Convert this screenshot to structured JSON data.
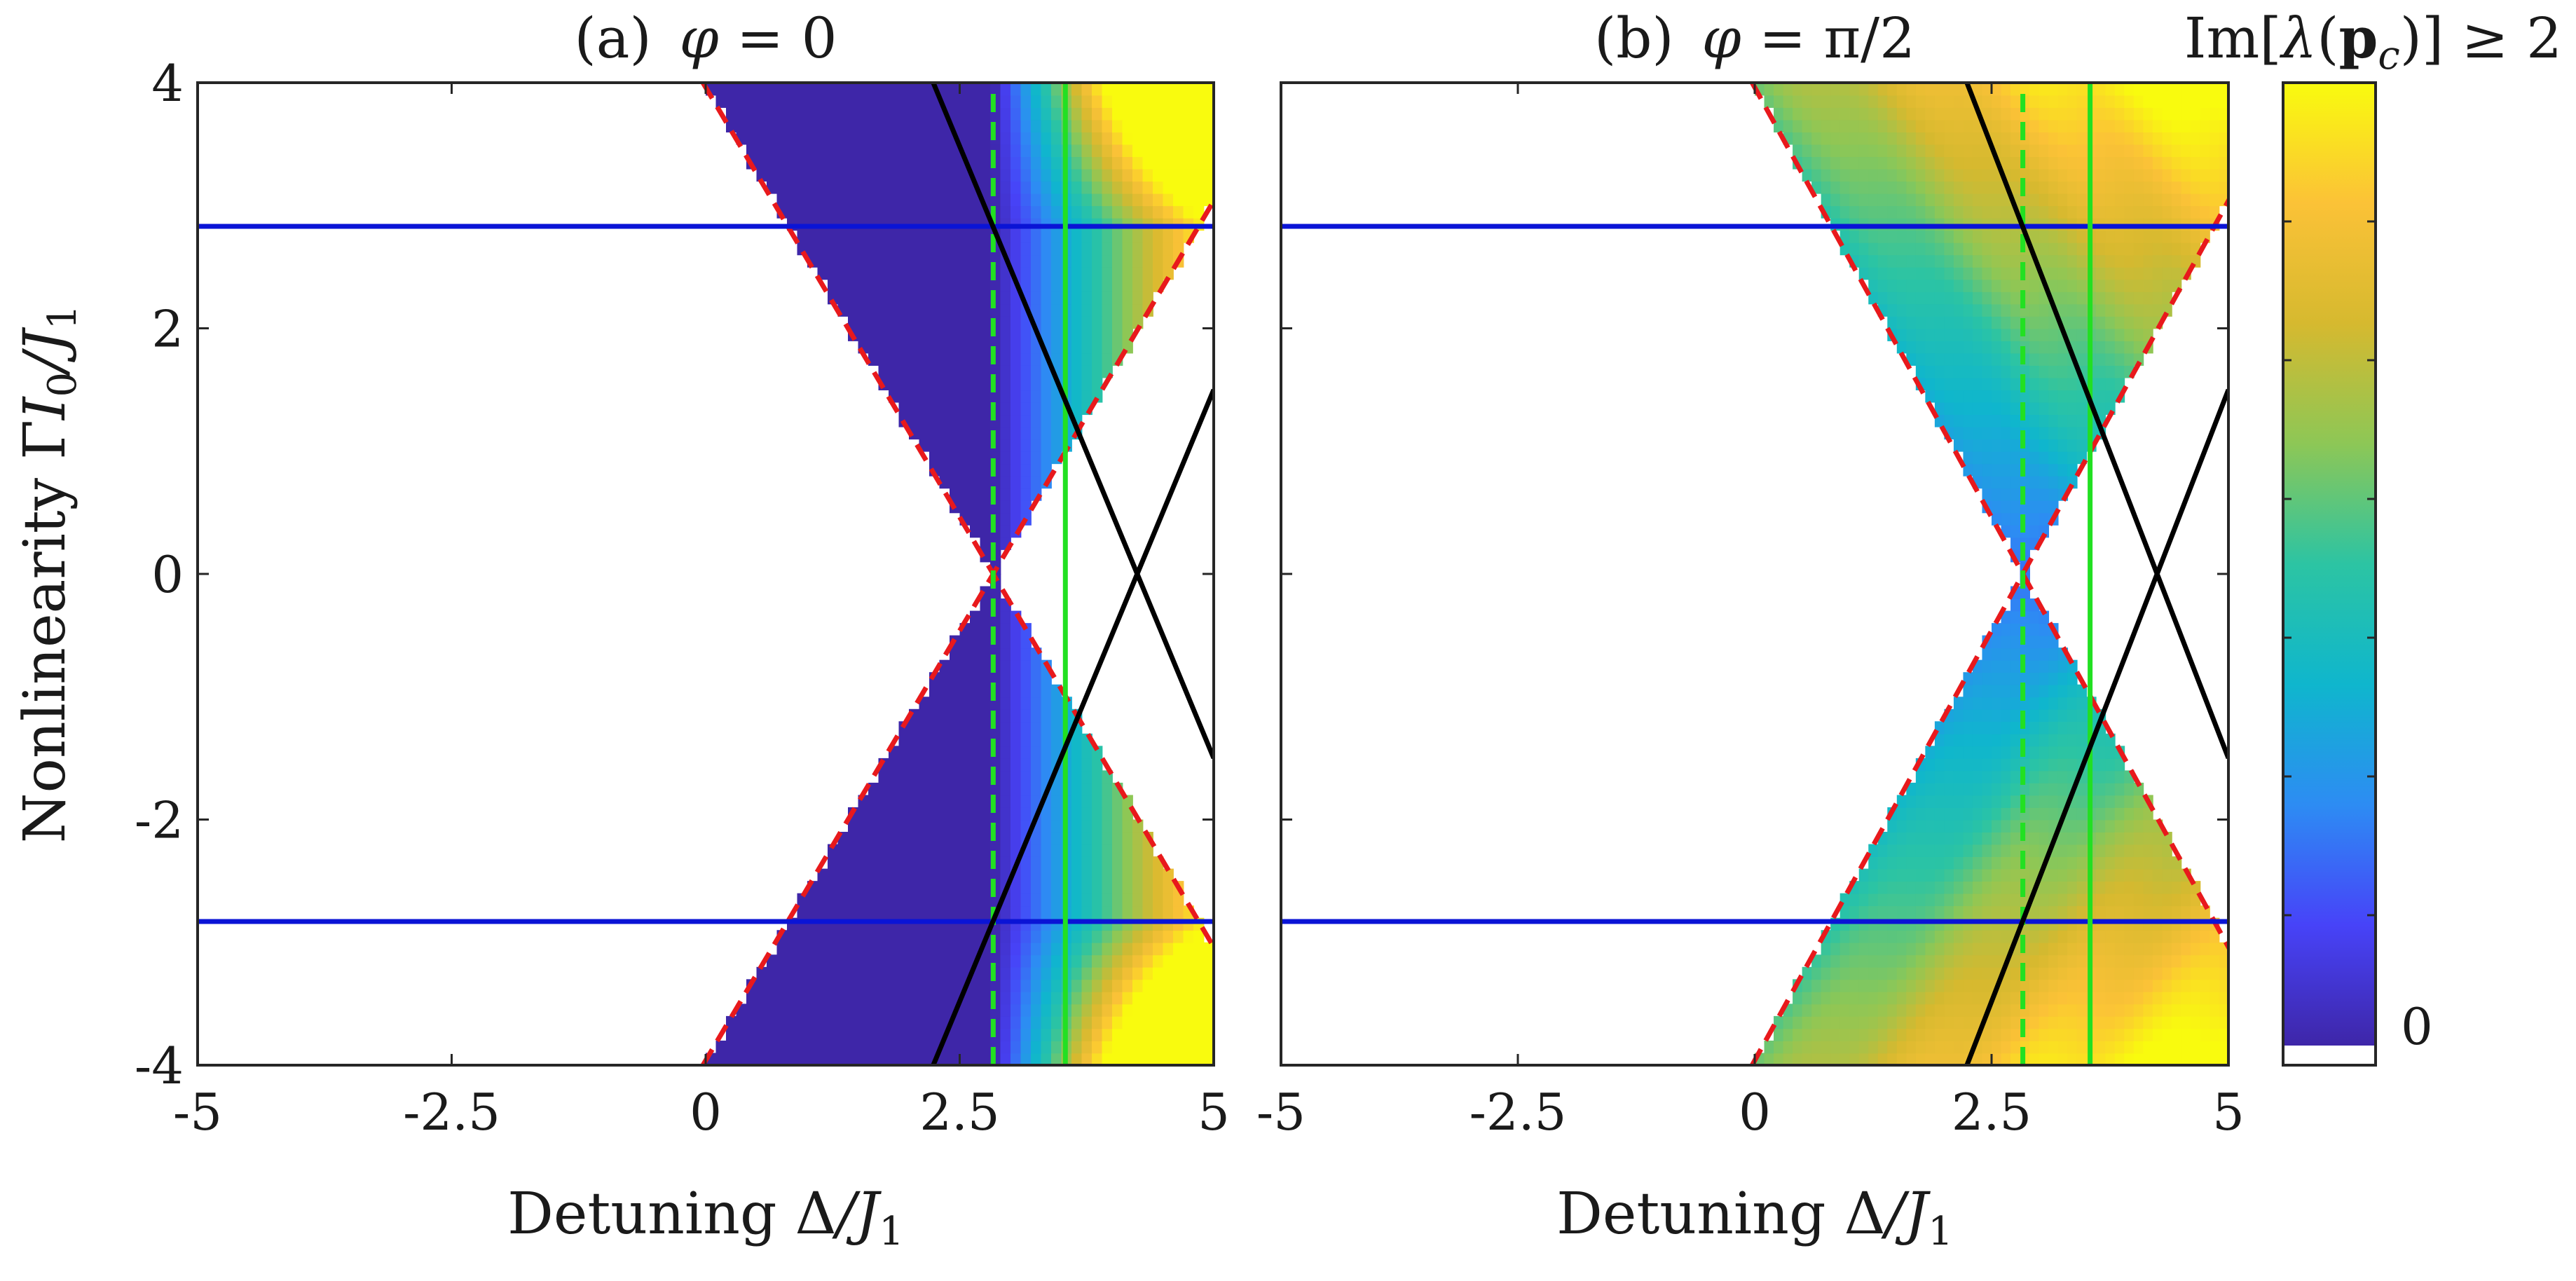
{
  "figure": {
    "colorbar": {
      "label": "Im[λ(p_c)] ≥ 2",
      "label_parts": {
        "pre": "Im[",
        "lam": "λ",
        "open": "(",
        "p": "p",
        "sub": "c",
        "post": ")] ≥ 2"
      },
      "min_label": "0",
      "colormap": "parula",
      "range": [
        0,
        2
      ]
    }
  },
  "chart_data": [
    {
      "type": "heatmap",
      "panel_tag": "(a)",
      "title_parts": {
        "sym": "φ",
        "rest": " = 0"
      },
      "title": "(a) φ = 0",
      "xlabel": "Detuning Δ/J1",
      "xlabel_parts": {
        "pre": "Detuning ",
        "delta": "Δ",
        "slash": "/",
        "J": "J",
        "sub": "1"
      },
      "ylabel": "Nonlinearity ΓI0/J1",
      "ylabel_parts": {
        "pre": "Nonlinearity ",
        "gamma": "Γ",
        "I": "I",
        "isub": "0",
        "slash": "/",
        "J": "J",
        "sub": "1"
      },
      "xlim": [
        -5,
        5
      ],
      "ylim": [
        -4,
        4
      ],
      "xticks": [
        -5,
        -2.5,
        0,
        2.5,
        5
      ],
      "xtick_labels": [
        "-5",
        "-2.5",
        "0",
        "2.5",
        "5"
      ],
      "yticks": [
        -4,
        -2,
        0,
        2,
        4
      ],
      "ytick_labels": [
        "-4",
        "-2",
        "0",
        "2",
        "4"
      ],
      "phi": 0,
      "region": {
        "center_x": 2.83,
        "slope": 1.4,
        "boundary": "red dashed"
      },
      "lines": [
        {
          "kind": "hline",
          "y": 2.83,
          "color": "#0a14d6",
          "style": "solid"
        },
        {
          "kind": "hline",
          "y": -2.83,
          "color": "#0a14d6",
          "style": "solid"
        },
        {
          "kind": "vline",
          "x": 2.83,
          "color": "#22e022",
          "style": "dashed"
        },
        {
          "kind": "vline",
          "x": 3.54,
          "color": "#22e022",
          "style": "solid"
        },
        {
          "kind": "segment",
          "x": [
            2.24,
            5.0
          ],
          "y": [
            4.0,
            -1.5
          ],
          "color": "#000000",
          "style": "solid"
        },
        {
          "kind": "segment",
          "x": [
            2.24,
            5.0
          ],
          "y": [
            -4.0,
            1.5
          ],
          "color": "#000000",
          "style": "solid"
        }
      ]
    },
    {
      "type": "heatmap",
      "panel_tag": "(b)",
      "title_parts": {
        "sym": "φ",
        "rest": " = π/2"
      },
      "title": "(b) φ = π/2",
      "xlabel": "Detuning Δ/J1",
      "xlabel_parts": {
        "pre": "Detuning ",
        "delta": "Δ",
        "slash": "/",
        "J": "J",
        "sub": "1"
      },
      "xlim": [
        -5,
        5
      ],
      "ylim": [
        -4,
        4
      ],
      "xticks": [
        -5,
        -2.5,
        0,
        2.5,
        5
      ],
      "xtick_labels": [
        "-5",
        "-2.5",
        "0",
        "2.5",
        "5"
      ],
      "yticks": [
        -4,
        -2,
        0,
        2,
        4
      ],
      "phi": 1.5708,
      "region": {
        "center_x": 2.83,
        "slope": 1.4,
        "boundary": "red dashed"
      },
      "lines": [
        {
          "kind": "hline",
          "y": 2.83,
          "color": "#0a14d6",
          "style": "solid"
        },
        {
          "kind": "hline",
          "y": -2.83,
          "color": "#0a14d6",
          "style": "solid"
        },
        {
          "kind": "vline",
          "x": 2.83,
          "color": "#22e022",
          "style": "dashed"
        },
        {
          "kind": "vline",
          "x": 3.54,
          "color": "#22e022",
          "style": "solid"
        },
        {
          "kind": "segment",
          "x": [
            2.24,
            5.0
          ],
          "y": [
            4.0,
            -1.5
          ],
          "color": "#000000",
          "style": "solid"
        },
        {
          "kind": "segment",
          "x": [
            2.24,
            5.0
          ],
          "y": [
            -4.0,
            1.5
          ],
          "color": "#000000",
          "style": "solid"
        }
      ]
    }
  ]
}
